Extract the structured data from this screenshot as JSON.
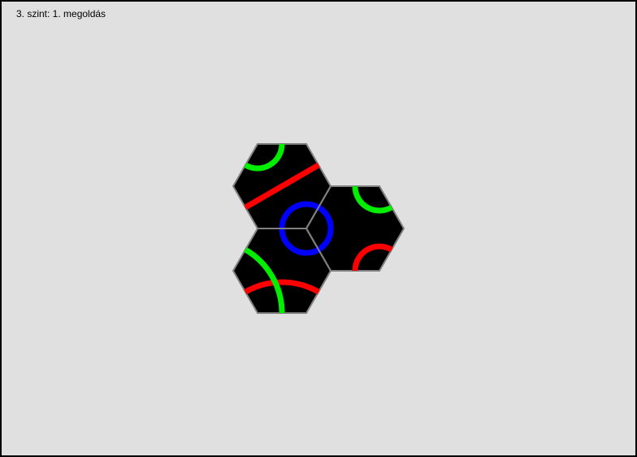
{
  "status": {
    "level_text": "3. szint: 1. megoldás"
  },
  "colors": {
    "background": "#e0e0e0",
    "frame": "#000000",
    "tile_fill": "#000000",
    "tile_edge": "#808080",
    "red": "#ff0000",
    "green": "#00ee00",
    "blue": "#0000ff"
  },
  "tiles": [
    {
      "name": "hex-tile-top"
    },
    {
      "name": "hex-tile-right"
    },
    {
      "name": "hex-tile-bottom"
    }
  ]
}
